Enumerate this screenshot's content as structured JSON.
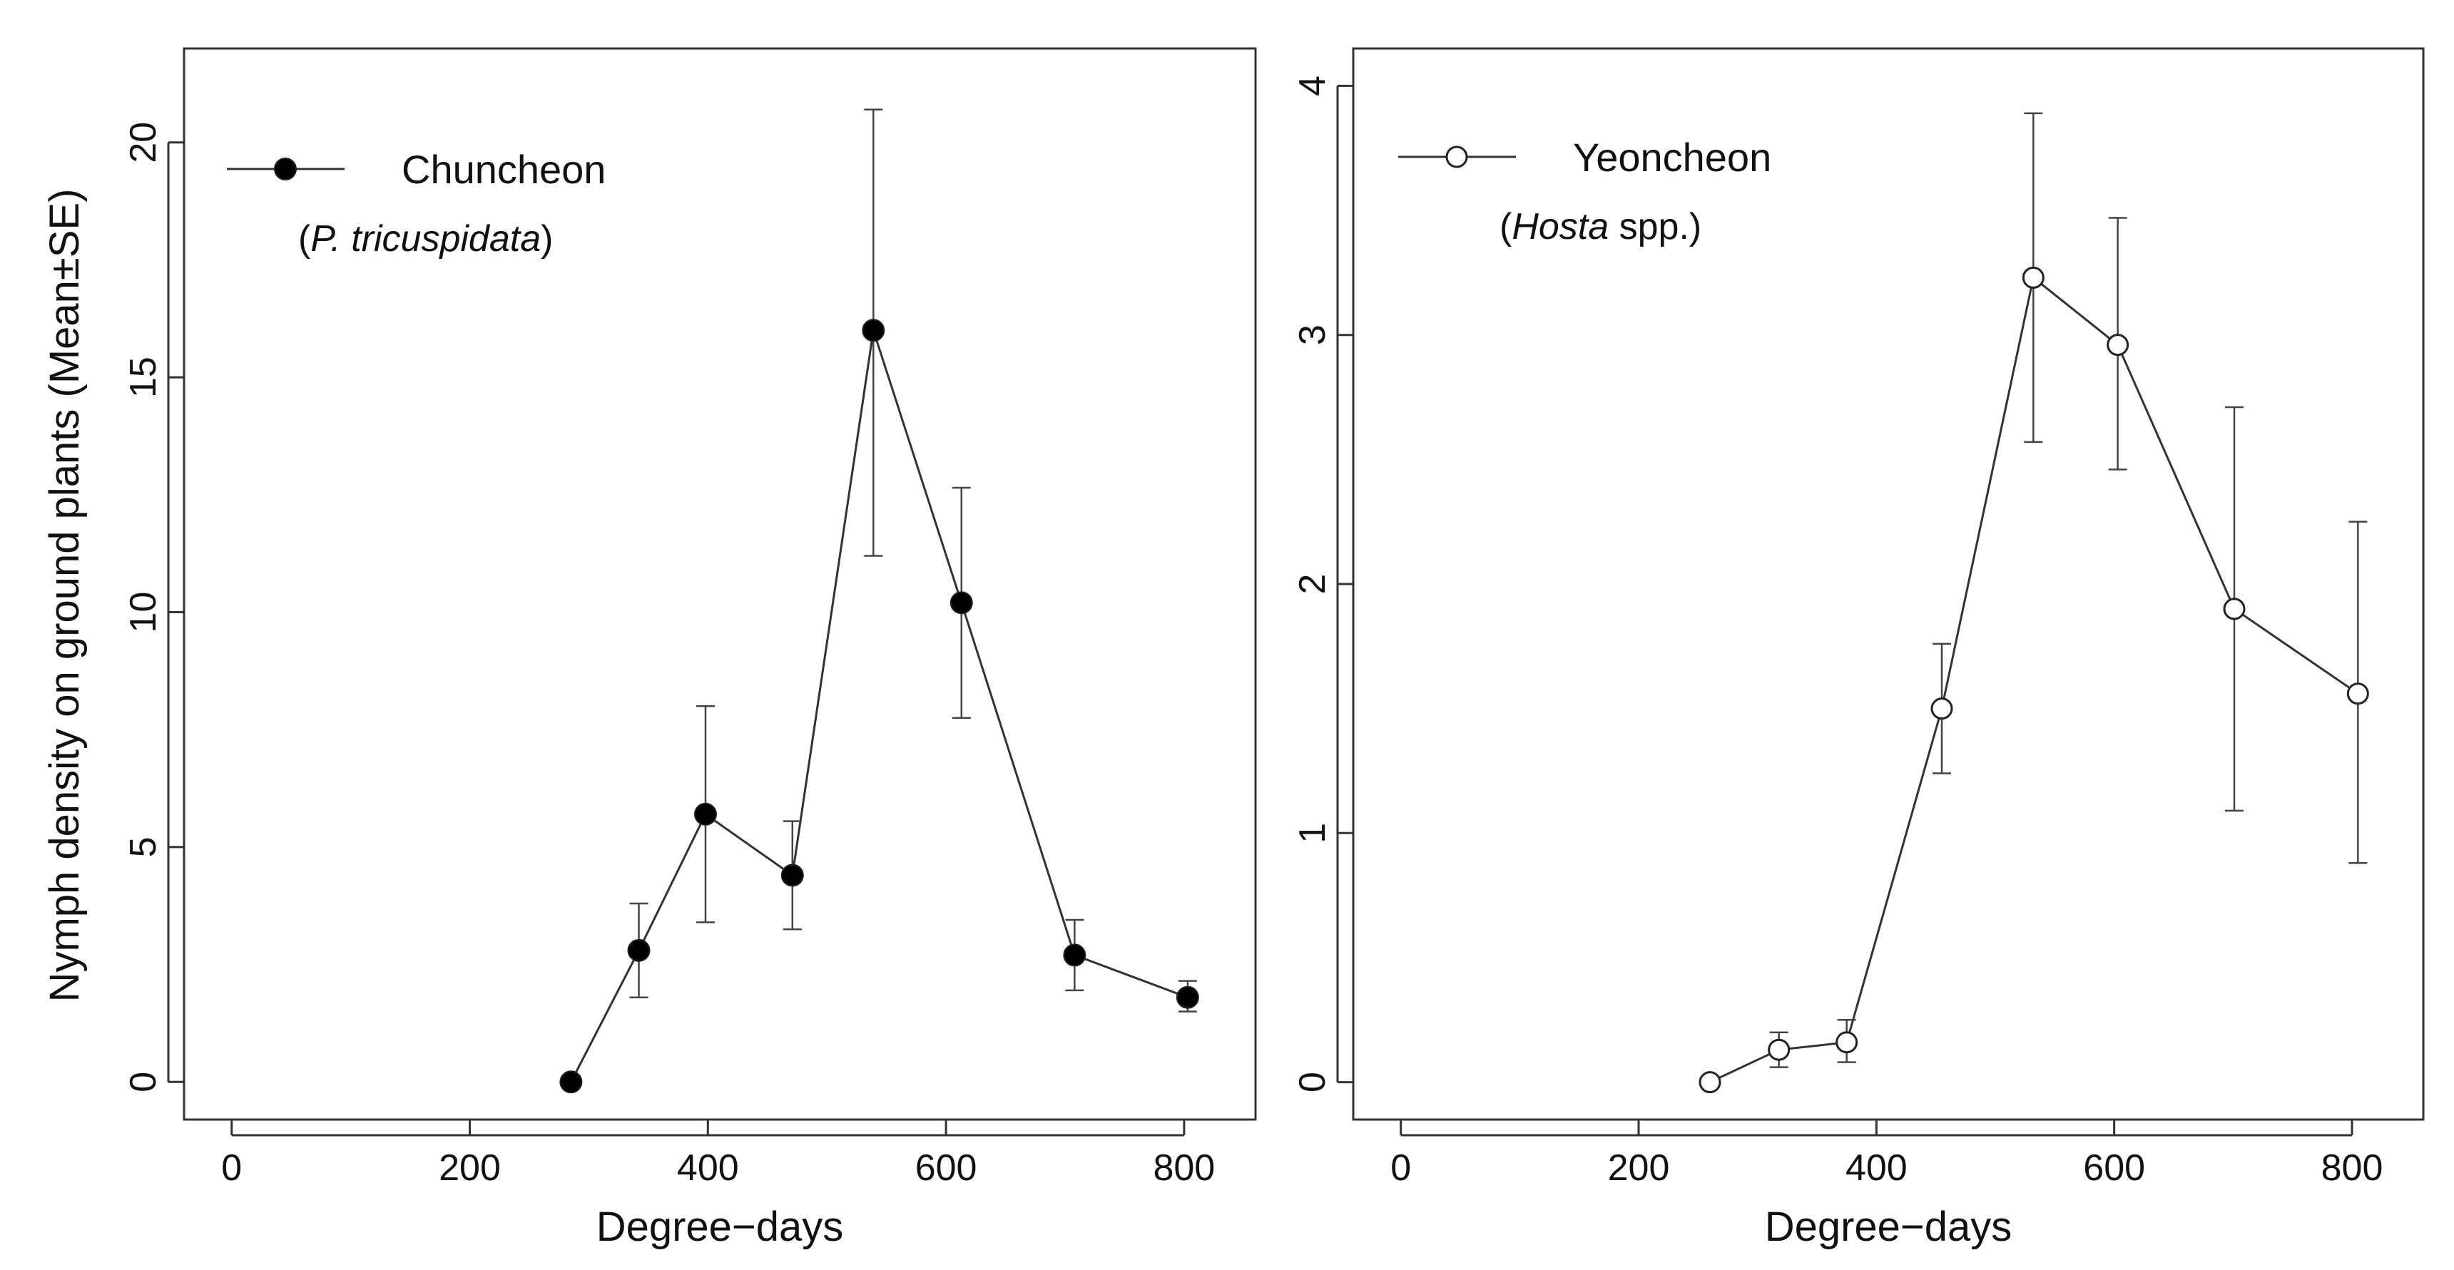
{
  "figure": {
    "ylabel": "Nymph density on ground plants (Mean±SE)"
  },
  "chart_data": [
    {
      "type": "line",
      "panel": "left",
      "xlabel": "Degree−days",
      "ylabel": "Nymph density on ground plants (Mean±SE)",
      "xlim": [
        -40,
        860
      ],
      "ylim": [
        -0.8,
        22
      ],
      "xticks": [
        0,
        200,
        400,
        600,
        800
      ],
      "yticks": [
        0,
        5,
        10,
        15,
        20
      ],
      "marker": "filled-circle",
      "legend": {
        "position": "top-left",
        "site": "Chuncheon",
        "host_open": "(",
        "host_italic": "P. tricuspidata",
        "host_rest": "",
        "host_close": ")"
      },
      "series": [
        {
          "name": "Chuncheon",
          "x": [
            285,
            342,
            398,
            471,
            539,
            613,
            708,
            803
          ],
          "y": [
            0,
            2.8,
            5.7,
            4.4,
            16.0,
            10.2,
            2.7,
            1.8
          ],
          "err_low": [
            0,
            1.8,
            3.4,
            3.25,
            11.2,
            7.75,
            1.95,
            1.5
          ],
          "err_high": [
            0,
            3.8,
            8.0,
            5.55,
            20.7,
            12.65,
            3.45,
            2.15
          ]
        }
      ]
    },
    {
      "type": "line",
      "panel": "right",
      "xlabel": "Degree−days",
      "ylabel": "",
      "xlim": [
        -40,
        860
      ],
      "ylim": [
        -0.15,
        4.15
      ],
      "xticks": [
        0,
        200,
        400,
        600,
        800
      ],
      "yticks": [
        0,
        1,
        2,
        3,
        4
      ],
      "marker": "open-circle",
      "legend": {
        "position": "top-left",
        "site": "Yeoncheon",
        "host_open": "(",
        "host_italic": "Hosta",
        "host_rest": " spp.",
        "host_close": ")"
      },
      "series": [
        {
          "name": "Yeoncheon",
          "x": [
            260,
            318,
            375,
            455,
            532,
            603,
            701,
            805
          ],
          "y": [
            0,
            0.13,
            0.16,
            1.5,
            3.23,
            2.96,
            1.9,
            1.56
          ],
          "err_low": [
            0,
            0.06,
            0.08,
            1.24,
            2.57,
            2.46,
            1.09,
            0.88
          ],
          "err_high": [
            0,
            0.2,
            0.25,
            1.76,
            3.89,
            3.47,
            2.71,
            2.25
          ]
        }
      ]
    }
  ]
}
